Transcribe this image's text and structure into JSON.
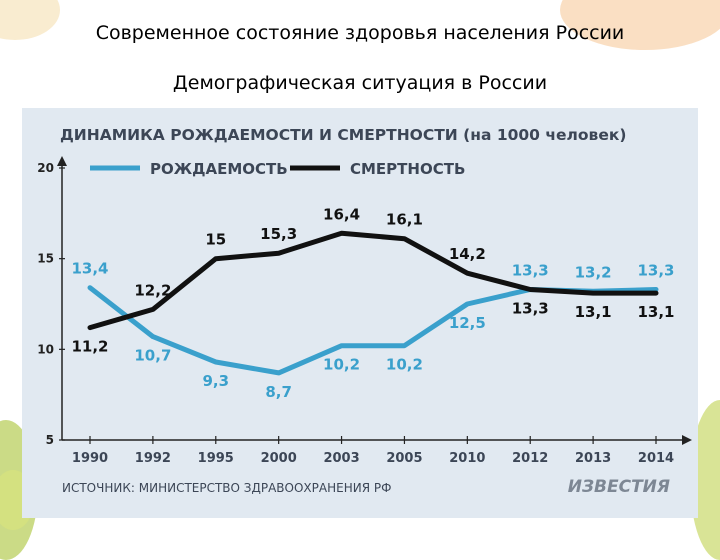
{
  "slide": {
    "title": "Современное состояние здоровья населения России",
    "subtitle": "Демографическая ситуация в России"
  },
  "colors": {
    "birth": "#3aa0cc",
    "death": "#111111",
    "panel": "#e1e9f1",
    "heading": "#3c4656",
    "axis": "#222222"
  },
  "chart_data": {
    "type": "line",
    "title": "ДИНАМИКА РОЖДАЕМОСТИ И СМЕРТНОСТИ (на 1000 человек)",
    "categories": [
      "1990",
      "1992",
      "1995",
      "2000",
      "2003",
      "2005",
      "2010",
      "2012",
      "2013",
      "2014"
    ],
    "ylim": [
      5,
      20
    ],
    "yticks": [
      "5",
      "10",
      "15",
      "20"
    ],
    "series": [
      {
        "name": "РОЖДАЕМОСТЬ",
        "values": [
          13.4,
          10.7,
          9.3,
          8.7,
          10.2,
          10.2,
          12.5,
          13.3,
          13.2,
          13.3
        ],
        "labels": [
          "13,4",
          "10,7",
          "9,3",
          "8,7",
          "10,2",
          "10,2",
          "12,5",
          "13,3",
          "13,2",
          "13,3"
        ]
      },
      {
        "name": "СМЕРТНОСТЬ",
        "values": [
          11.2,
          12.2,
          15,
          15.3,
          16.4,
          16.1,
          14.2,
          13.3,
          13.1,
          13.1
        ],
        "labels": [
          "11,2",
          "12,2",
          "15",
          "15,3",
          "16,4",
          "16,1",
          "14,2",
          "13,3",
          "13,1",
          "13,1"
        ]
      }
    ],
    "source": "ИСТОЧНИК: МИНИСТЕРСТВО ЗДРАВООХРАНЕНИЯ РФ",
    "publisher": "ИЗВЕСТИЯ"
  }
}
